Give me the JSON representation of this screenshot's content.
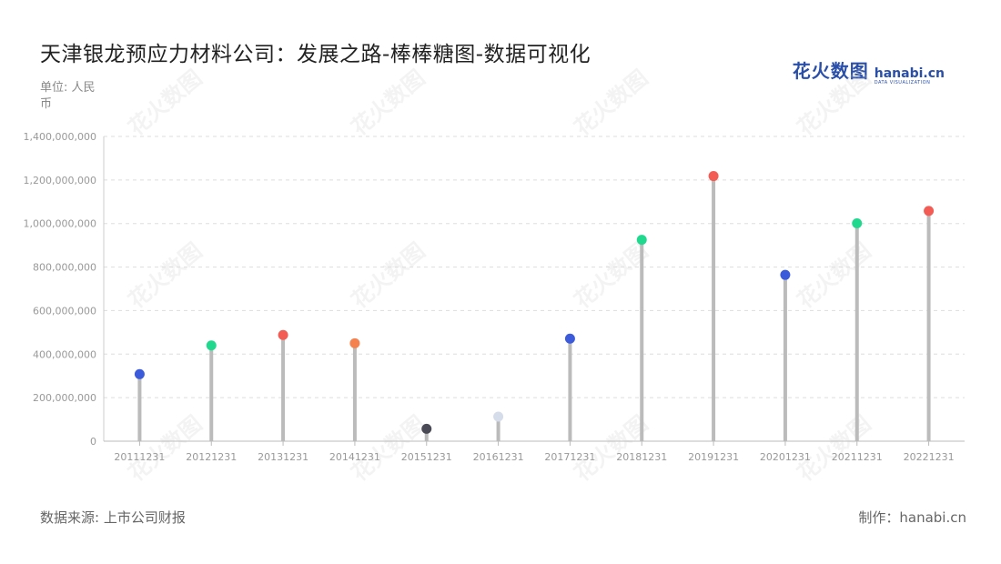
{
  "header": {
    "title": "天津银龙预应力材料公司：发展之路-棒棒糖图-数据可视化",
    "unit": "单位: 人民币"
  },
  "logo": {
    "cn": "花火数图",
    "en": "hanabi.cn",
    "sub": "DATA VISUALIZATION"
  },
  "footer": {
    "source": "数据来源: 上市公司财报",
    "credit": "制作：hanabi.cn"
  },
  "watermark": "花火数图",
  "chart_data": {
    "type": "lollipop",
    "categories": [
      "20111231",
      "20121231",
      "20131231",
      "20141231",
      "20151231",
      "20161231",
      "20171231",
      "20181231",
      "20191231",
      "20201231",
      "20211231",
      "20221231"
    ],
    "values": [
      308000000,
      440000000,
      488000000,
      450000000,
      57000000,
      113000000,
      471000000,
      925000000,
      1218000000,
      764000000,
      1001000000,
      1058000000
    ],
    "colors": [
      "#3b5bdb",
      "#20d98f",
      "#f25c54",
      "#f5814f",
      "#4a4a56",
      "#d5dcea",
      "#3b5bdb",
      "#20d98f",
      "#f25c54",
      "#3b5bdb",
      "#20d98f",
      "#f25c54"
    ],
    "stem_color": "#bbbbbb",
    "ylim": [
      0,
      1400000000
    ],
    "yticks": [
      0,
      200000000,
      400000000,
      600000000,
      800000000,
      1000000000,
      1200000000,
      1400000000
    ],
    "ytick_labels": [
      "0",
      "200,000,000",
      "400,000,000",
      "600,000,000",
      "800,000,000",
      "1,000,000,000",
      "1,200,000,000",
      "1,400,000,000"
    ],
    "grid": true,
    "xlabel": "",
    "ylabel": ""
  }
}
